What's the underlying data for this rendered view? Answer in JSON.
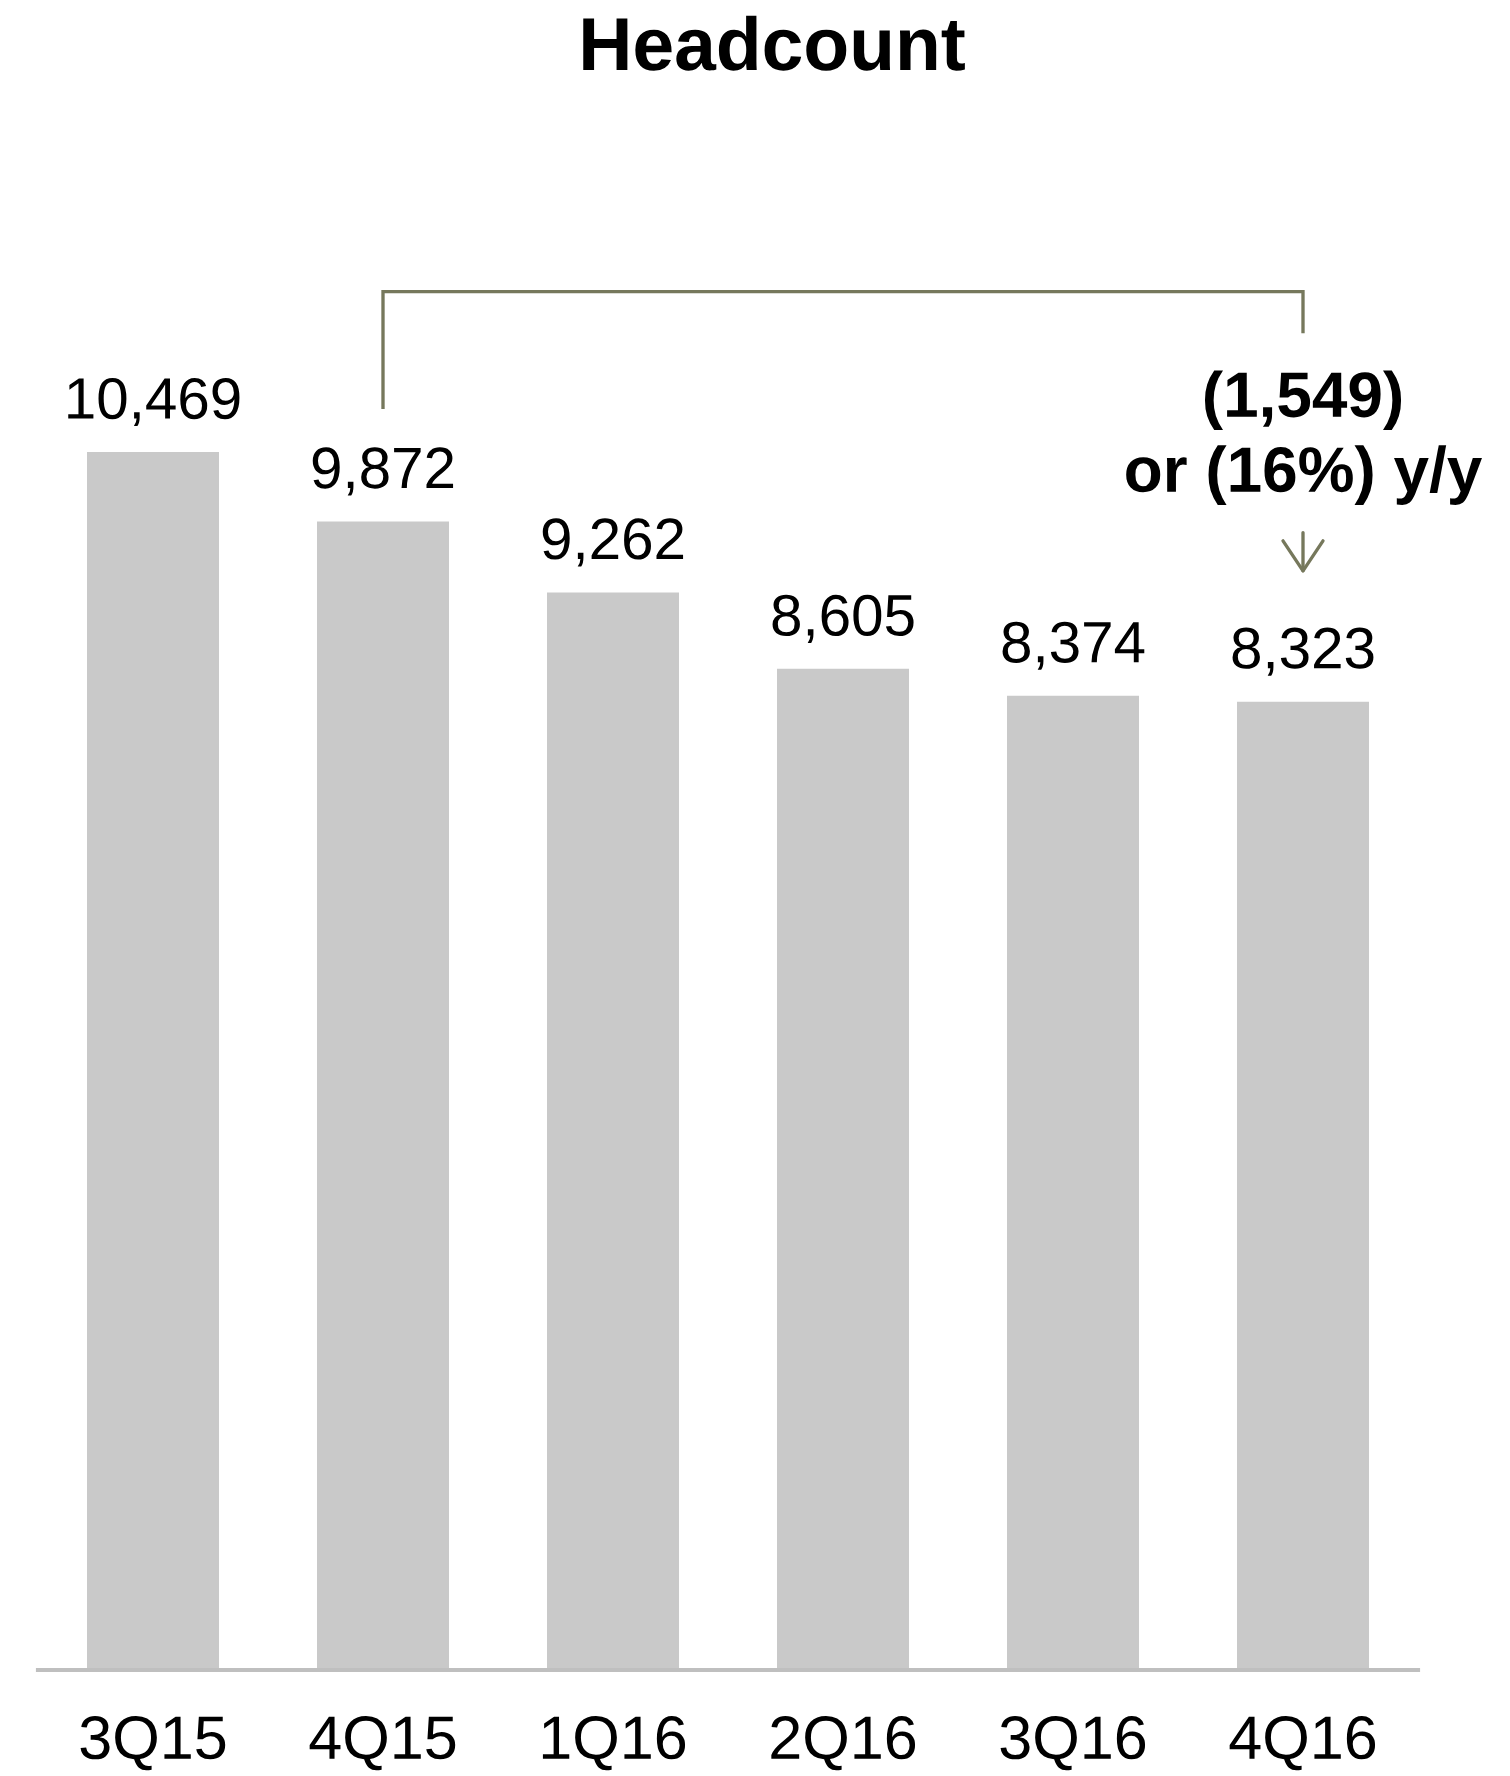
{
  "chart_data": {
    "type": "bar",
    "title": "Headcount",
    "categories": [
      "3Q15",
      "4Q15",
      "1Q16",
      "2Q16",
      "3Q16",
      "4Q16"
    ],
    "values": [
      10469,
      9872,
      9262,
      8605,
      8374,
      8323
    ],
    "color": "#c9c9c9",
    "value_labels": [
      "10,469",
      "9,872",
      "9,262",
      "8,605",
      "8,374",
      "8,323"
    ],
    "annotations": [
      "(1,549)\nor (16%) y/y"
    ]
  }
}
